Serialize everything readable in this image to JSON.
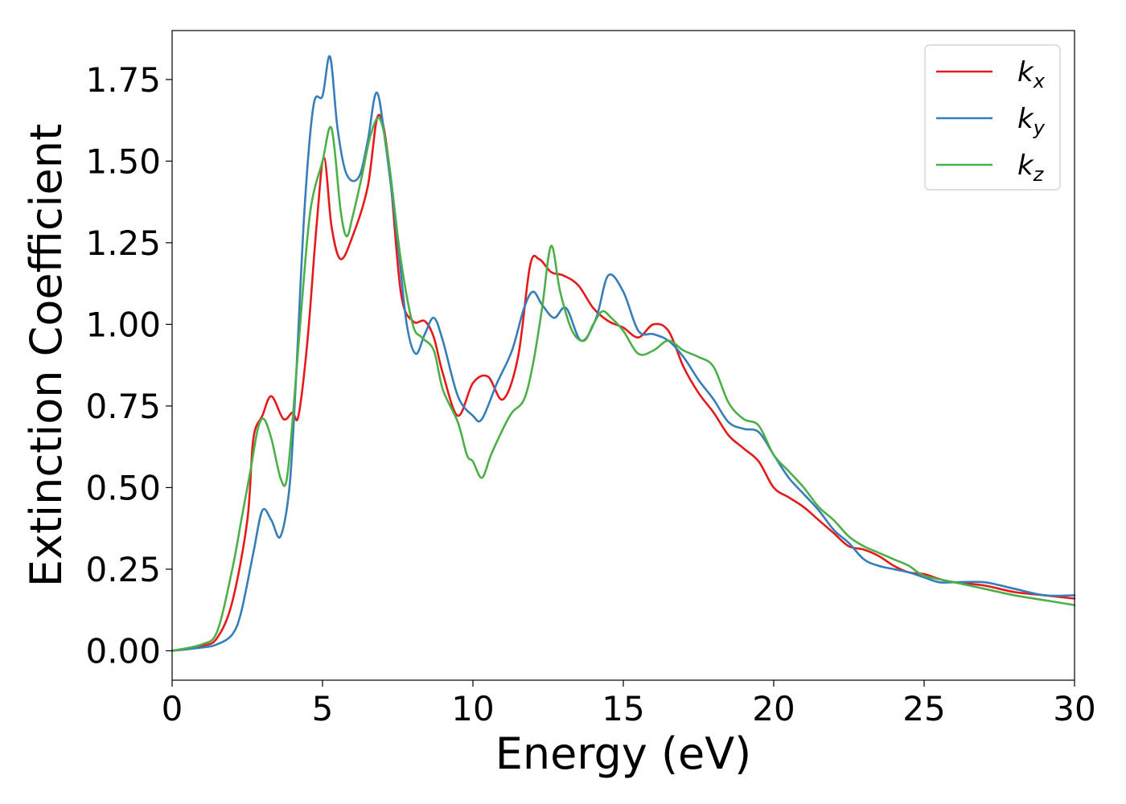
{
  "chart_data": {
    "type": "line",
    "xlabel": "Energy (eV)",
    "ylabel": "Extinction Coefficient",
    "xlim": [
      0,
      30
    ],
    "ylim": [
      -0.09,
      1.9
    ],
    "xticks": [
      0,
      5,
      10,
      15,
      20,
      25,
      30
    ],
    "xtick_labels": [
      "0",
      "5",
      "10",
      "15",
      "20",
      "25",
      "30"
    ],
    "yticks": [
      0,
      0.25,
      0.5,
      0.75,
      1.0,
      1.25,
      1.5,
      1.75
    ],
    "ytick_labels": [
      "0.00",
      "0.25",
      "0.50",
      "0.75",
      "1.00",
      "1.25",
      "1.50",
      "1.75"
    ],
    "grid": false,
    "legend": "top-right",
    "series": [
      {
        "name": "k",
        "subscript": "x",
        "color": "#e41a1c",
        "x": [
          0,
          1,
          1.5,
          2,
          2.5,
          2.7,
          3,
          3.3,
          3.7,
          4,
          4.2,
          4.5,
          4.8,
          5.05,
          5.3,
          5.6,
          6,
          6.5,
          6.85,
          7.2,
          7.6,
          8,
          8.4,
          8.7,
          9,
          9.5,
          10,
          10.5,
          11,
          11.5,
          11.9,
          12.2,
          12.6,
          13,
          13.5,
          14,
          14.5,
          15,
          15.5,
          16,
          16.5,
          17,
          17.5,
          18,
          18.5,
          19,
          19.5,
          20,
          20.5,
          21,
          21.5,
          22,
          22.5,
          23,
          23.5,
          24,
          24.5,
          25,
          25.5,
          26,
          27,
          28,
          29,
          30
        ],
        "y": [
          0,
          0.015,
          0.04,
          0.15,
          0.4,
          0.65,
          0.72,
          0.78,
          0.71,
          0.73,
          0.72,
          0.95,
          1.3,
          1.51,
          1.3,
          1.2,
          1.27,
          1.42,
          1.64,
          1.5,
          1.1,
          1.01,
          1.01,
          0.96,
          0.85,
          0.72,
          0.82,
          0.84,
          0.77,
          0.9,
          1.18,
          1.2,
          1.16,
          1.15,
          1.12,
          1.05,
          1.01,
          0.99,
          0.96,
          1.0,
          0.98,
          0.87,
          0.79,
          0.73,
          0.66,
          0.62,
          0.58,
          0.5,
          0.47,
          0.44,
          0.4,
          0.36,
          0.32,
          0.31,
          0.29,
          0.26,
          0.24,
          0.235,
          0.22,
          0.21,
          0.2,
          0.18,
          0.17,
          0.16
        ]
      },
      {
        "name": "k",
        "subscript": "y",
        "color": "#377eb8",
        "x": [
          0,
          1,
          1.5,
          2,
          2.3,
          2.7,
          3,
          3.3,
          3.6,
          3.9,
          4.1,
          4.4,
          4.7,
          5,
          5.25,
          5.5,
          5.8,
          6.2,
          6.5,
          6.8,
          7.1,
          7.5,
          7.8,
          8.1,
          8.4,
          8.7,
          9,
          9.5,
          10,
          10.3,
          10.8,
          11.3,
          11.7,
          12,
          12.3,
          12.7,
          13.1,
          13.6,
          14.1,
          14.5,
          15,
          15.5,
          16,
          16.5,
          17,
          17.5,
          18,
          18.5,
          19,
          19.5,
          20,
          20.5,
          21,
          21.5,
          22,
          22.5,
          23,
          23.5,
          24,
          24.5,
          25,
          25.5,
          26,
          27,
          28,
          29,
          30
        ],
        "y": [
          0,
          0.01,
          0.02,
          0.05,
          0.12,
          0.3,
          0.43,
          0.4,
          0.35,
          0.5,
          0.8,
          1.35,
          1.67,
          1.7,
          1.82,
          1.6,
          1.46,
          1.45,
          1.56,
          1.71,
          1.55,
          1.25,
          1.0,
          0.91,
          0.97,
          1.02,
          0.95,
          0.78,
          0.72,
          0.71,
          0.82,
          0.92,
          1.05,
          1.1,
          1.06,
          1.02,
          1.05,
          0.95,
          1.02,
          1.15,
          1.1,
          0.98,
          0.97,
          0.95,
          0.9,
          0.83,
          0.77,
          0.7,
          0.68,
          0.67,
          0.6,
          0.53,
          0.48,
          0.43,
          0.37,
          0.33,
          0.28,
          0.26,
          0.25,
          0.24,
          0.225,
          0.21,
          0.21,
          0.21,
          0.19,
          0.17,
          0.17
        ]
      },
      {
        "name": "k",
        "subscript": "z",
        "color": "#4daf4a",
        "x": [
          0,
          1,
          1.5,
          2,
          2.3,
          2.6,
          2.85,
          3.05,
          3.3,
          3.6,
          3.8,
          4,
          4.3,
          4.6,
          5,
          5.3,
          5.6,
          5.8,
          6,
          6.3,
          6.6,
          6.9,
          7.2,
          7.6,
          8,
          8.3,
          8.7,
          9,
          9.5,
          9.8,
          10,
          10.3,
          10.6,
          11,
          11.3,
          11.7,
          12,
          12.3,
          12.6,
          12.9,
          13.3,
          13.7,
          14,
          14.3,
          14.6,
          15,
          15.5,
          16,
          16.5,
          17,
          17.5,
          18,
          18.5,
          19,
          19.5,
          20,
          20.5,
          21,
          21.5,
          22,
          22.5,
          23,
          23.5,
          24,
          24.5,
          25,
          26,
          27,
          28,
          29,
          30
        ],
        "y": [
          0,
          0.02,
          0.06,
          0.25,
          0.4,
          0.55,
          0.68,
          0.71,
          0.65,
          0.53,
          0.52,
          0.7,
          1.05,
          1.35,
          1.5,
          1.6,
          1.35,
          1.27,
          1.33,
          1.45,
          1.58,
          1.63,
          1.5,
          1.2,
          1.0,
          0.96,
          0.92,
          0.8,
          0.7,
          0.6,
          0.58,
          0.53,
          0.6,
          0.68,
          0.73,
          0.77,
          0.88,
          1.05,
          1.24,
          1.1,
          0.98,
          0.95,
          1.0,
          1.04,
          1.02,
          0.98,
          0.91,
          0.92,
          0.95,
          0.92,
          0.9,
          0.87,
          0.76,
          0.71,
          0.69,
          0.6,
          0.55,
          0.5,
          0.44,
          0.4,
          0.35,
          0.32,
          0.3,
          0.28,
          0.26,
          0.23,
          0.21,
          0.19,
          0.17,
          0.155,
          0.14
        ]
      }
    ]
  }
}
